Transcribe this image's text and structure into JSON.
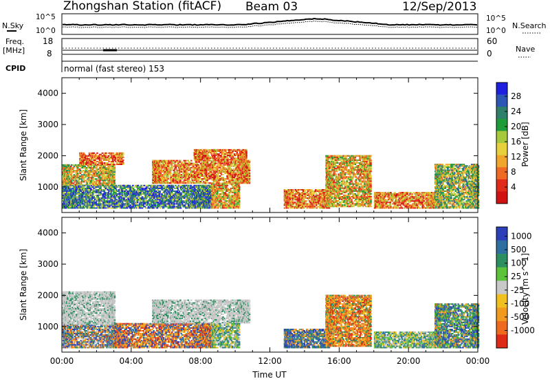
{
  "title": {
    "station": "Zhongshan Station (fitACF)",
    "beam": "Beam 03",
    "date": "12/Sep/2013"
  },
  "summary_panel": {
    "nsky_label": "N.Sky",
    "nsky_ticks": [
      "10^5",
      "10^0"
    ],
    "nsearch_label": "N.Search",
    "nsearch_ticks": [
      "10^5",
      "10^0"
    ],
    "freq_label": "Freq.",
    "freq_unit": "[MHz]",
    "freq_ticks": [
      "18",
      "8"
    ],
    "nave_label": "Nave",
    "nave_ticks": [
      "60",
      "0"
    ],
    "cpid_label": "CPID",
    "cpid_text": "normal (fast stereo) 153"
  },
  "chart_data": [
    {
      "type": "heatmap",
      "name": "power-panel",
      "title": "",
      "xlabel": "",
      "ylabel": "Slant Range [km]",
      "xlim": [
        0,
        24
      ],
      "ylim": [
        180,
        4500
      ],
      "yticks": [
        "1000",
        "2000",
        "3000",
        "4000"
      ],
      "colorbar": {
        "label": "Power [dB]",
        "ticks": [
          "4",
          "8",
          "12",
          "16",
          "20",
          "24",
          "28"
        ],
        "colors": [
          "#1f1fe0",
          "#2c57b5",
          "#2f7f6a",
          "#1e9c3a",
          "#a6c83a",
          "#e6d13d",
          "#f0a52b",
          "#ef6a22",
          "#e02b1a",
          "#d01212"
        ]
      },
      "echo_regions": [
        {
          "t0": 0.0,
          "t1": 8.6,
          "r0": 300,
          "r1": 1050,
          "level": 0.75
        },
        {
          "t0": 0.0,
          "t1": 3.0,
          "r0": 1050,
          "r1": 1700,
          "level": 0.45
        },
        {
          "t0": 1.0,
          "t1": 3.5,
          "r0": 1700,
          "r1": 2100,
          "level": 0.25
        },
        {
          "t0": 5.2,
          "t1": 10.8,
          "r0": 1100,
          "r1": 1850,
          "level": 0.3
        },
        {
          "t0": 7.6,
          "t1": 10.6,
          "r0": 1850,
          "r1": 2200,
          "level": 0.25
        },
        {
          "t0": 8.6,
          "t1": 10.2,
          "r0": 300,
          "r1": 1100,
          "level": 0.4
        },
        {
          "t0": 12.8,
          "t1": 15.4,
          "r0": 300,
          "r1": 900,
          "level": 0.3
        },
        {
          "t0": 15.2,
          "t1": 17.8,
          "r0": 350,
          "r1": 2000,
          "level": 0.4
        },
        {
          "t0": 18.0,
          "t1": 21.5,
          "r0": 300,
          "r1": 800,
          "level": 0.3
        },
        {
          "t0": 21.5,
          "t1": 24.0,
          "r0": 300,
          "r1": 1700,
          "level": 0.55
        }
      ]
    },
    {
      "type": "heatmap",
      "name": "velocity-panel",
      "title": "",
      "xlabel": "Time UT",
      "ylabel": "Slant Range [km]",
      "xlim": [
        0,
        24
      ],
      "ylim": [
        180,
        4500
      ],
      "xticks": [
        "00:00",
        "04:00",
        "08:00",
        "12:00",
        "16:00",
        "20:00",
        "00:00"
      ],
      "yticks": [
        "1000",
        "2000",
        "3000",
        "4000"
      ],
      "colorbar": {
        "label": "Velocity [m s^-1]",
        "ticks": [
          "1000",
          "500",
          "100",
          "25",
          "-25",
          "-100",
          "-500",
          "-1000"
        ],
        "colors": [
          "#2a3fb8",
          "#2f6fa0",
          "#2d8f60",
          "#5cc23a",
          "#c8c8c8",
          "#f0c01e",
          "#f09a1f",
          "#ee6a1f",
          "#e02a18"
        ]
      },
      "echo_regions": [
        {
          "t0": 0.0,
          "t1": 3.0,
          "r0": 300,
          "r1": 1050,
          "vclass": "mixed-blue-orange"
        },
        {
          "t0": 3.0,
          "t1": 8.6,
          "r0": 300,
          "r1": 1100,
          "vclass": "mixed-orange-blue"
        },
        {
          "t0": 0.0,
          "t1": 3.0,
          "r0": 1050,
          "r1": 2100,
          "vclass": "grey"
        },
        {
          "t0": 5.2,
          "t1": 10.8,
          "r0": 1100,
          "r1": 1850,
          "vclass": "grey"
        },
        {
          "t0": 8.6,
          "t1": 10.2,
          "r0": 300,
          "r1": 1100,
          "vclass": "mixed-green"
        },
        {
          "t0": 12.8,
          "t1": 15.4,
          "r0": 300,
          "r1": 900,
          "vclass": "blue"
        },
        {
          "t0": 15.2,
          "t1": 17.8,
          "r0": 350,
          "r1": 2000,
          "vclass": "orange"
        },
        {
          "t0": 18.0,
          "t1": 21.5,
          "r0": 300,
          "r1": 800,
          "vclass": "mixed-green"
        },
        {
          "t0": 21.5,
          "t1": 24.0,
          "r0": 300,
          "r1": 1700,
          "vclass": "mixed-green-blue"
        }
      ]
    }
  ]
}
